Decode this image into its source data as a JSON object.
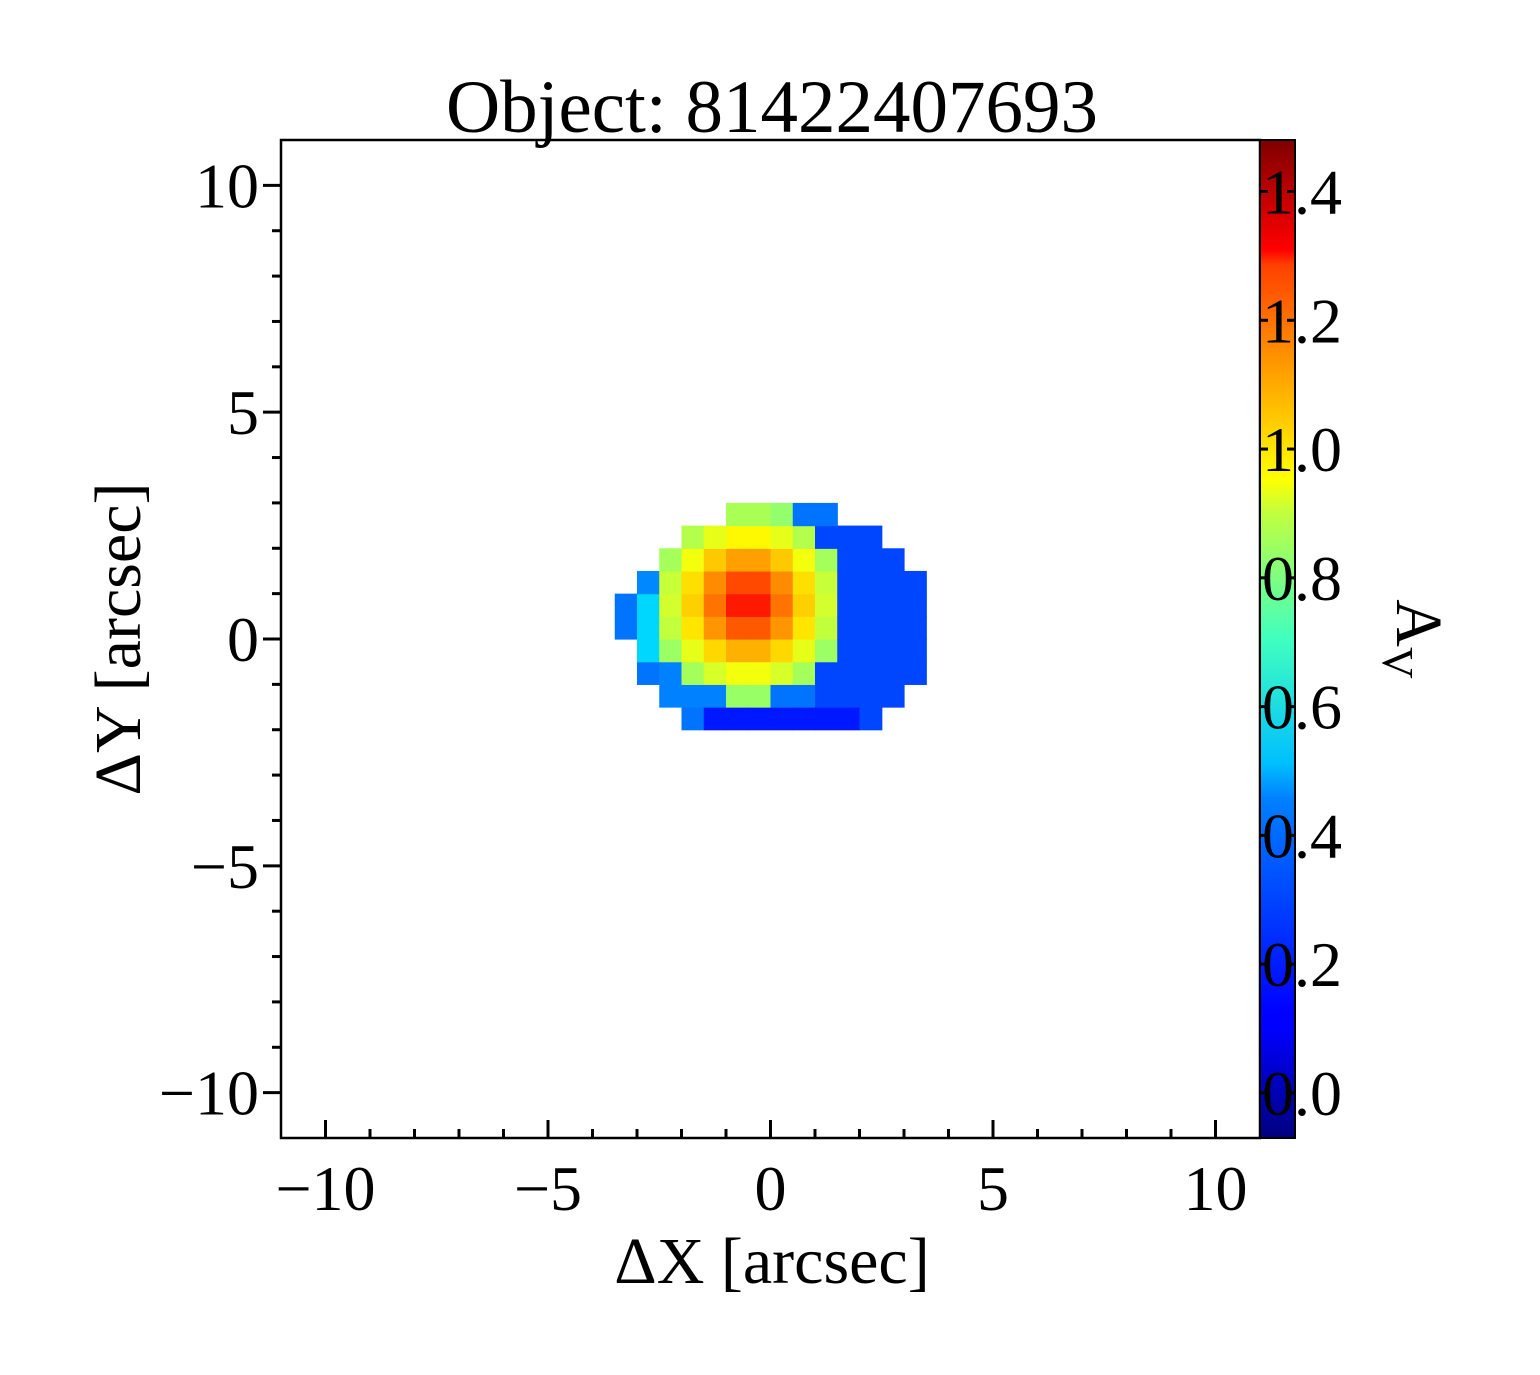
{
  "chart_data": {
    "type": "heatmap",
    "title": "Object: 81422407693",
    "xlabel": "ΔX [arcsec]",
    "ylabel": "ΔY [arcsec]",
    "colorbar_label": "A",
    "colorbar_label_sub": "V",
    "xlim": [
      -11,
      11
    ],
    "ylim": [
      -11,
      11
    ],
    "clim": [
      -0.07,
      1.48
    ],
    "xticks": [
      -10,
      -5,
      0,
      5,
      10
    ],
    "yticks": [
      -10,
      -5,
      0,
      5,
      10
    ],
    "xtick_labels": [
      "−10",
      "−5",
      "0",
      "5",
      "10"
    ],
    "ytick_labels": [
      "−10",
      "−5",
      "0",
      "5",
      "10"
    ],
    "colorbar_ticks": [
      0.0,
      0.2,
      0.4,
      0.6,
      0.8,
      1.0,
      1.2,
      1.4
    ],
    "colorbar_tick_labels": [
      "0.0",
      "0.2",
      "0.4",
      "0.6",
      "0.8",
      "1.0",
      "1.2",
      "1.4"
    ],
    "colormap": "jet",
    "grid": false,
    "pixel_size_arcsec": 0.5,
    "image": {
      "center": [
        0.2,
        0.35
      ],
      "semi_axes": [
        3.5,
        2.6
      ],
      "peak": {
        "x": -0.5,
        "y": 0.8,
        "value": 1.32
      },
      "regions": [
        {
          "name": "upper-left",
          "x": [
            -3.0,
            -0.5
          ],
          "y": [
            0.8,
            2.8
          ],
          "value": 0.33
        },
        {
          "name": "left",
          "x": [
            -3.2,
            -1.8
          ],
          "y": [
            -0.5,
            1.0
          ],
          "value": 0.45
        },
        {
          "name": "lower-left",
          "x": [
            -2.5,
            -0.5
          ],
          "y": [
            -1.5,
            -0.3
          ],
          "value": 0.32
        },
        {
          "name": "bottom",
          "x": [
            -1.5,
            2.0
          ],
          "y": [
            -2.2,
            -1.3
          ],
          "value": 0.16
        },
        {
          "name": "right",
          "x": [
            1.0,
            3.5
          ],
          "y": [
            -1.8,
            2.5
          ],
          "value": 0.23
        },
        {
          "name": "top",
          "x": [
            -0.5,
            1.5
          ],
          "y": [
            2.3,
            3.0
          ],
          "value": 0.3
        }
      ]
    }
  }
}
